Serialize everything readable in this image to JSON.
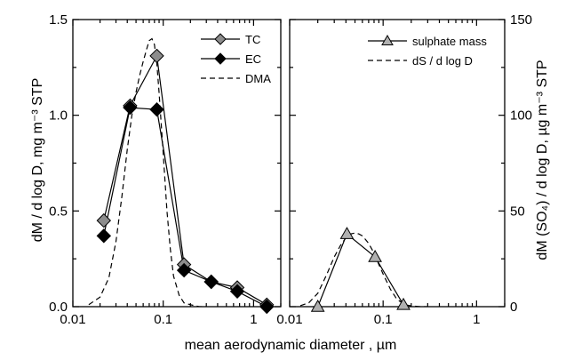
{
  "chart_data": [
    {
      "type": "line",
      "xscale": "log",
      "xlim": [
        0.01,
        2
      ],
      "ylim": [
        0,
        1.5
      ],
      "xlabel": "mean aerodynamic diameter , µm",
      "ylabel": "dM / d log D,  mg m⁻³  STP",
      "xticks": [
        0.01,
        0.1,
        1
      ],
      "xtick_labels": [
        "0.01",
        "0.1",
        "1"
      ],
      "yticks": [
        0.0,
        0.5,
        1.0,
        1.5
      ],
      "ytick_labels": [
        "0.0",
        "0.5",
        "1.0",
        "1.5"
      ],
      "legend_position": "top-right",
      "grid": false,
      "series": [
        {
          "name": "TC",
          "marker": "diamond",
          "color": "#8c8c8c",
          "x": [
            0.022,
            0.043,
            0.085,
            0.17,
            0.34,
            0.66,
            1.4
          ],
          "y": [
            0.45,
            1.05,
            1.31,
            0.22,
            0.13,
            0.1,
            0.01
          ]
        },
        {
          "name": "EC",
          "marker": "diamond",
          "color": "#000000",
          "x": [
            0.022,
            0.043,
            0.085,
            0.17,
            0.34,
            0.66,
            1.4
          ],
          "y": [
            0.37,
            1.04,
            1.03,
            0.19,
            0.13,
            0.08,
            0.0
          ]
        },
        {
          "name": "DMA",
          "style": "dashed",
          "color": "#000000",
          "x": [
            0.015,
            0.02,
            0.025,
            0.03,
            0.035,
            0.04,
            0.045,
            0.05,
            0.055,
            0.06,
            0.065,
            0.07,
            0.075,
            0.08,
            0.085,
            0.09,
            0.1,
            0.11,
            0.12,
            0.13,
            0.15,
            0.17,
            0.2,
            0.25,
            0.3
          ],
          "y": [
            0.01,
            0.05,
            0.15,
            0.34,
            0.58,
            0.82,
            1.0,
            1.12,
            1.21,
            1.28,
            1.34,
            1.39,
            1.4,
            1.37,
            1.27,
            1.12,
            0.8,
            0.5,
            0.3,
            0.16,
            0.06,
            0.02,
            0.01,
            0.0,
            0.0
          ]
        }
      ]
    },
    {
      "type": "line",
      "xscale": "log",
      "xlim": [
        0.01,
        2
      ],
      "ylim": [
        0,
        150
      ],
      "ylabel": "dM (SO₄) / d log D,  µg m⁻³  STP",
      "xticks": [
        0.01,
        0.1,
        1
      ],
      "xtick_labels": [
        "0.01",
        "0.1",
        "1"
      ],
      "yticks": [
        0,
        50,
        100,
        150
      ],
      "ytick_labels": [
        "0",
        "50",
        "100",
        "150"
      ],
      "legend_position": "top-right",
      "grid": false,
      "series": [
        {
          "name": "sulphate mass",
          "marker": "triangle",
          "color": "#b0b0b0",
          "x": [
            0.02,
            0.041,
            0.082,
            0.165
          ],
          "y": [
            0,
            38,
            26,
            1
          ]
        },
        {
          "name": "dS / d log D",
          "style": "dashed",
          "color": "#000000",
          "x": [
            0.013,
            0.016,
            0.02,
            0.025,
            0.03,
            0.035,
            0.04,
            0.045,
            0.05,
            0.055,
            0.06,
            0.065,
            0.07,
            0.08,
            0.09,
            0.1,
            0.12,
            0.14,
            0.17,
            0.2,
            0.25,
            0.3
          ],
          "y": [
            0.5,
            2,
            7,
            17,
            26,
            32,
            36,
            38,
            38.5,
            38,
            37,
            35,
            33,
            28,
            22,
            17,
            9,
            4,
            1,
            0.4,
            0,
            0
          ]
        }
      ]
    }
  ]
}
